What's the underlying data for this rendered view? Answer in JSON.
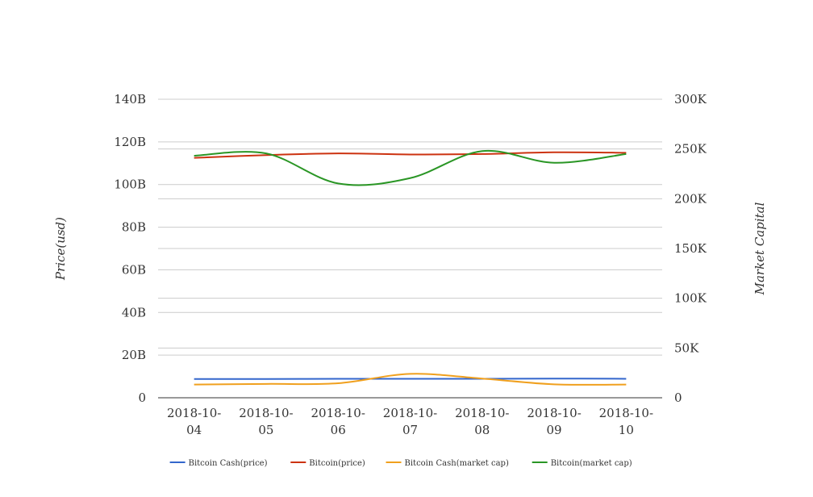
{
  "chart_data": {
    "type": "line",
    "categories": [
      [
        "2018-10-",
        "04"
      ],
      [
        "2018-10-",
        "05"
      ],
      [
        "2018-10-",
        "06"
      ],
      [
        "2018-10-",
        "07"
      ],
      [
        "2018-10-",
        "08"
      ],
      [
        "2018-10-",
        "09"
      ],
      [
        "2018-10-",
        "10"
      ]
    ],
    "left_axis": {
      "label": "Price(usd)",
      "ticks": [
        0,
        20,
        40,
        60,
        80,
        100,
        120,
        140
      ],
      "tick_labels": [
        "0",
        "20B",
        "40B",
        "60B",
        "80B",
        "100B",
        "120B",
        "140B"
      ],
      "range": [
        0,
        140
      ]
    },
    "right_axis": {
      "label": "Market Capital",
      "ticks": [
        0,
        50,
        100,
        150,
        200,
        250,
        300
      ],
      "tick_labels": [
        "0",
        "50K",
        "100K",
        "150K",
        "200K",
        "250K",
        "300K"
      ],
      "range": [
        0,
        300
      ]
    },
    "series": [
      {
        "name": "Bitcoin Cash(price)",
        "axis": "left",
        "color": "#3366cc",
        "values": [
          8.8,
          8.8,
          8.9,
          8.9,
          8.9,
          9.0,
          8.9
        ]
      },
      {
        "name": "Bitcoin(price)",
        "axis": "left",
        "color": "#cc3311",
        "values": [
          112.5,
          113.8,
          114.6,
          114.1,
          114.3,
          115.1,
          114.9
        ]
      },
      {
        "name": "Bitcoin Cash(market cap)",
        "axis": "left",
        "color": "#f0a01e",
        "values": [
          6.2,
          6.5,
          6.8,
          11.2,
          9.0,
          6.3,
          6.2
        ]
      },
      {
        "name": "Bitcoin(market cap)",
        "axis": "left",
        "color": "#2a9625",
        "values": [
          113.5,
          114.6,
          100.5,
          103.0,
          115.7,
          110.2,
          114.3
        ]
      }
    ],
    "grid": true,
    "legend_position": "bottom"
  }
}
